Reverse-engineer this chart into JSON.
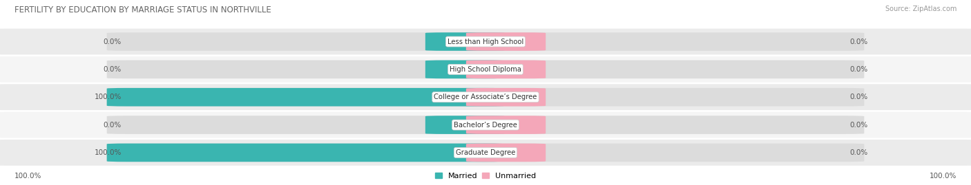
{
  "title": "FERTILITY BY EDUCATION BY MARRIAGE STATUS IN NORTHVILLE",
  "source": "Source: ZipAtlas.com",
  "categories": [
    "Less than High School",
    "High School Diploma",
    "College or Associate’s Degree",
    "Bachelor’s Degree",
    "Graduate Degree"
  ],
  "married_values": [
    0.0,
    0.0,
    100.0,
    0.0,
    100.0
  ],
  "unmarried_values": [
    0.0,
    0.0,
    0.0,
    0.0,
    0.0
  ],
  "married_color": "#3ab5b0",
  "unmarried_color": "#f4a7b9",
  "bar_bg_color": "#dcdcdc",
  "row_bg_even": "#ebebeb",
  "row_bg_odd": "#f5f5f5",
  "title_color": "#666666",
  "value_color": "#555555",
  "legend_married": "Married",
  "legend_unmarried": "Unmarried",
  "bottom_left_label": "100.0%",
  "bottom_right_label": "100.0%",
  "figsize": [
    14.06,
    2.69
  ],
  "dpi": 100
}
